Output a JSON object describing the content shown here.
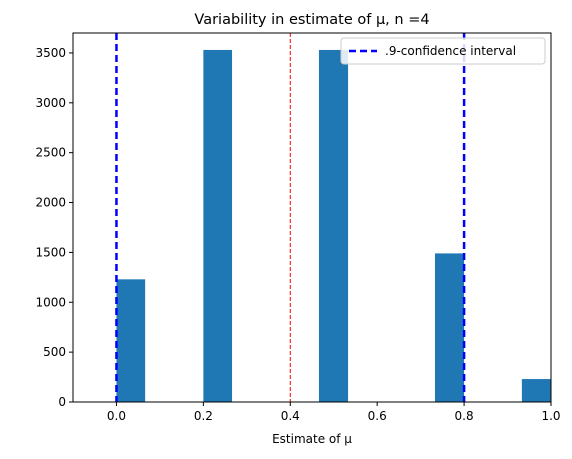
{
  "chart_data": {
    "type": "bar",
    "title": "Variability in estimate of μ, n =4",
    "xlabel": "Estimate of μ",
    "ylabel": "",
    "xlim": [
      -0.1,
      1.0
    ],
    "ylim": [
      0,
      3700
    ],
    "x_ticks": [
      0.0,
      0.2,
      0.4,
      0.6,
      0.8,
      1.0
    ],
    "x_tick_labels": [
      "0.0",
      "0.2",
      "0.4",
      "0.6",
      "0.8",
      "1.0"
    ],
    "y_ticks": [
      0,
      500,
      1000,
      1500,
      2000,
      2500,
      3000,
      3500
    ],
    "y_tick_labels": [
      "0",
      "500",
      "1000",
      "1500",
      "2000",
      "2500",
      "3000",
      "3500"
    ],
    "bars": [
      {
        "x0": 0.0,
        "x1": 0.066,
        "value": 1230
      },
      {
        "x0": 0.2,
        "x1": 0.266,
        "value": 3530
      },
      {
        "x0": 0.466,
        "x1": 0.533,
        "value": 3530
      },
      {
        "x0": 0.733,
        "x1": 0.8,
        "value": 1490
      },
      {
        "x0": 0.933,
        "x1": 1.0,
        "value": 230
      }
    ],
    "bar_color": "#1f77b4",
    "vlines": [
      {
        "x": 0.0,
        "color": "#0000ff",
        "style": "dashed-thick",
        "legend": true
      },
      {
        "x": 0.4,
        "color": "#ff0000",
        "style": "dashed-thin",
        "legend": false
      },
      {
        "x": 0.8,
        "color": "#0000ff",
        "style": "dashed-thick",
        "legend": false
      }
    ],
    "legend": {
      "placement": "top-right",
      "label": ".9-confidence interval",
      "color": "#0000ff"
    },
    "grid": false
  }
}
